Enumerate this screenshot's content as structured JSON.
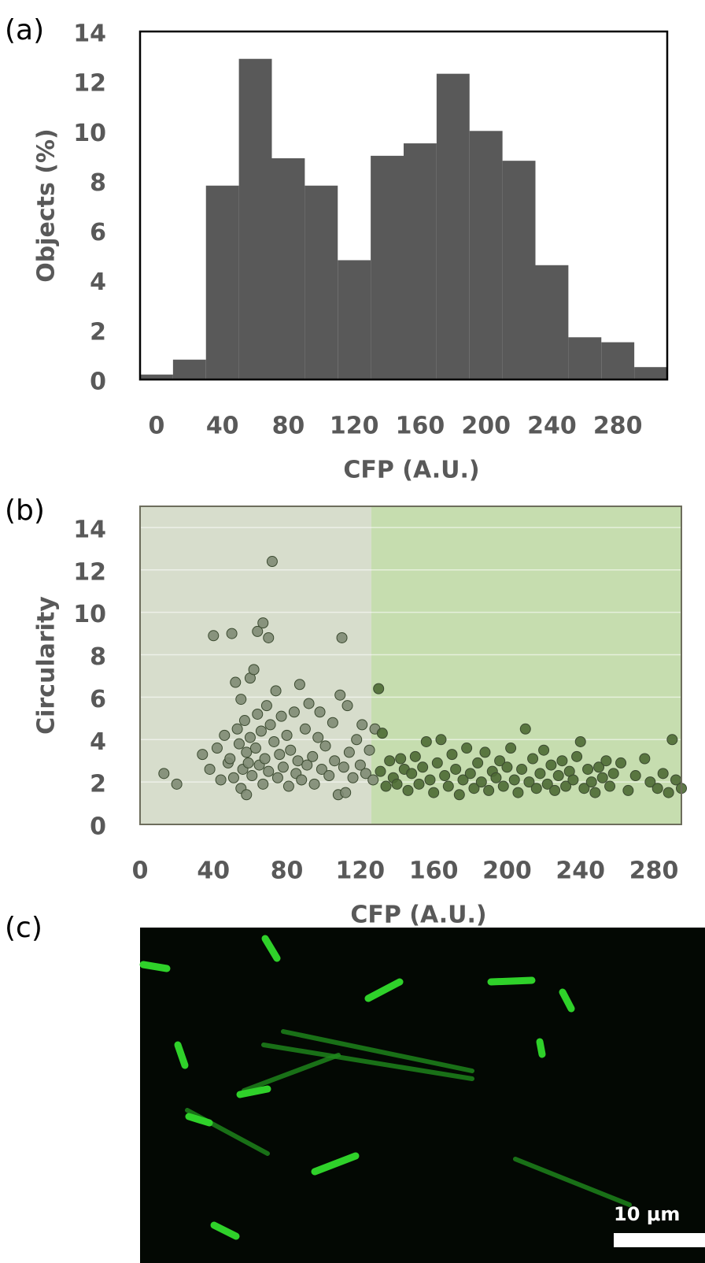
{
  "chart_data": [
    {
      "type": "histogram",
      "panel_label": "(a)",
      "xlabel": "CFP (A.U.)",
      "ylabel": "Objects (%)",
      "color": "#595959",
      "bins": [
        -10,
        10,
        30,
        50,
        70,
        90,
        110,
        130,
        150,
        170,
        190,
        210,
        230,
        250,
        270,
        290,
        310
      ],
      "values": [
        0.2,
        0.8,
        7.8,
        12.9,
        8.9,
        7.8,
        4.8,
        9.0,
        9.5,
        12.3,
        10.0,
        8.8,
        4.6,
        1.7,
        1.5,
        0.5
      ],
      "xlim": [
        -10,
        310
      ],
      "xticks": [
        0,
        40,
        80,
        120,
        160,
        200,
        240,
        280
      ],
      "ylim": [
        0,
        14
      ],
      "yticks": [
        0,
        2,
        4,
        6,
        8,
        10,
        12,
        14
      ]
    },
    {
      "type": "scatter",
      "panel_label": "(b)",
      "xlabel": "CFP (A.U.)",
      "ylabel": "Circularity",
      "grid": true,
      "regions": [
        {
          "xlim": [
            0,
            126
          ],
          "color": "#d7ddcc"
        },
        {
          "xlim": [
            126,
            295
          ],
          "color": "#c6ddaf"
        }
      ],
      "xlim": [
        0,
        295
      ],
      "xticks": [
        0,
        40,
        80,
        120,
        160,
        200,
        240,
        280
      ],
      "ylim": [
        0,
        15
      ],
      "yticks": [
        0,
        2,
        4,
        6,
        8,
        10,
        12,
        14
      ],
      "series": [
        {
          "color": "#7f8b74",
          "x": [
            13,
            20,
            34,
            38,
            40,
            42,
            44,
            46,
            48,
            49,
            50,
            51,
            52,
            53,
            54,
            55,
            55,
            56,
            57,
            58,
            58,
            59,
            60,
            60,
            61,
            62,
            63,
            64,
            64,
            65,
            66,
            67,
            67,
            68,
            69,
            70,
            70,
            71,
            72,
            73,
            74,
            75,
            76,
            77,
            78,
            80,
            81,
            82,
            84,
            85,
            86,
            87,
            88,
            90,
            91,
            92,
            94,
            95,
            97,
            98,
            99,
            101,
            103,
            105,
            106,
            108,
            109,
            110,
            111,
            112,
            113,
            114,
            116,
            118,
            120,
            121,
            123,
            125,
            127,
            128
          ],
          "values": [
            2.4,
            1.9,
            3.3,
            2.6,
            8.9,
            3.6,
            2.1,
            4.2,
            2.9,
            3.1,
            9.0,
            2.2,
            6.7,
            4.5,
            3.8,
            1.7,
            5.9,
            2.6,
            4.9,
            1.4,
            3.4,
            2.9,
            6.9,
            4.1,
            2.3,
            7.3,
            3.6,
            9.1,
            5.2,
            2.8,
            4.4,
            9.5,
            1.9,
            3.1,
            5.6,
            8.8,
            2.5,
            4.7,
            12.4,
            3.9,
            6.3,
            2.2,
            3.3,
            5.1,
            2.7,
            4.2,
            1.8,
            3.5,
            5.3,
            2.4,
            3.0,
            6.6,
            2.1,
            4.5,
            2.8,
            5.7,
            3.2,
            1.9,
            4.1,
            5.3,
            2.6,
            3.7,
            2.3,
            4.8,
            3.0,
            1.4,
            6.1,
            8.8,
            2.7,
            1.5,
            5.6,
            3.4,
            2.2,
            4.0,
            2.8,
            4.7,
            2.4,
            3.5,
            2.1,
            4.5
          ]
        },
        {
          "color": "#4d6a34",
          "x": [
            130,
            131,
            132,
            134,
            136,
            138,
            140,
            142,
            144,
            146,
            148,
            150,
            152,
            154,
            156,
            158,
            160,
            162,
            164,
            166,
            168,
            170,
            172,
            174,
            176,
            178,
            180,
            182,
            184,
            186,
            188,
            190,
            192,
            194,
            196,
            198,
            200,
            202,
            204,
            206,
            208,
            210,
            212,
            214,
            216,
            218,
            220,
            222,
            224,
            226,
            228,
            230,
            232,
            234,
            236,
            238,
            240,
            242,
            244,
            246,
            248,
            250,
            252,
            254,
            256,
            258,
            262,
            266,
            270,
            275,
            278,
            282,
            285,
            288,
            290,
            292,
            295
          ],
          "values": [
            6.4,
            2.5,
            4.3,
            1.8,
            3.0,
            2.2,
            1.9,
            3.1,
            2.6,
            1.6,
            2.4,
            3.2,
            1.9,
            2.7,
            3.9,
            2.1,
            1.5,
            2.9,
            4.0,
            2.3,
            1.8,
            3.3,
            2.6,
            1.4,
            2.1,
            3.6,
            2.4,
            1.7,
            2.9,
            2.0,
            3.4,
            1.6,
            2.5,
            2.2,
            3.0,
            1.8,
            2.7,
            3.6,
            2.1,
            1.5,
            2.6,
            4.5,
            2.0,
            3.1,
            1.7,
            2.4,
            3.5,
            1.9,
            2.8,
            1.6,
            2.3,
            3.0,
            1.8,
            2.5,
            2.1,
            3.2,
            3.9,
            1.7,
            2.6,
            2.0,
            1.5,
            2.7,
            2.2,
            3.0,
            1.8,
            2.4,
            2.9,
            1.6,
            2.3,
            3.1,
            2.0,
            1.7,
            2.4,
            1.5,
            4.0,
            2.1,
            1.7
          ]
        }
      ]
    },
    {
      "type": "image",
      "panel_label": "(c)",
      "scale_bar_label": "10 μm"
    }
  ]
}
